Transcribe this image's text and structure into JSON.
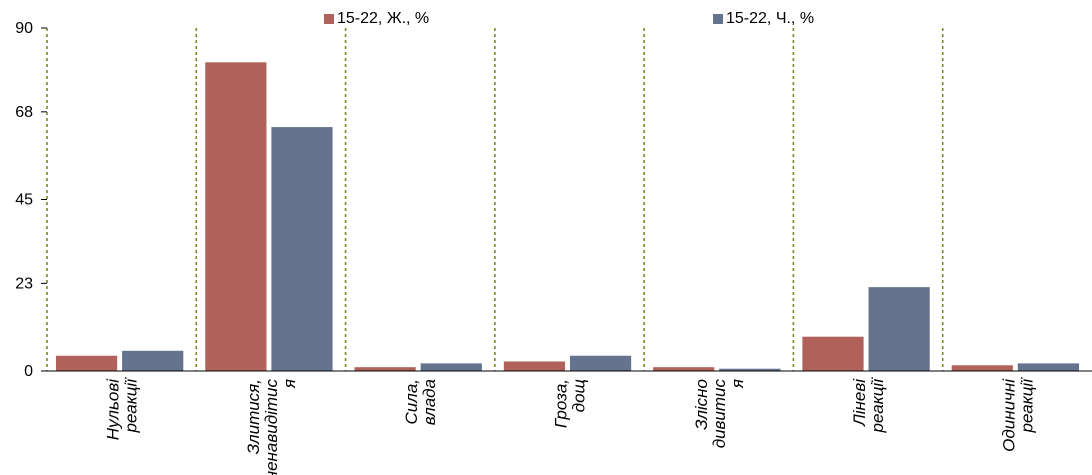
{
  "chart_data": {
    "type": "bar",
    "categories": [
      [
        "Нульові",
        "реакції"
      ],
      [
        "Злитися,",
        "ненавидітис",
        "я"
      ],
      [
        "Сила,",
        "влада"
      ],
      [
        "Гроза,",
        "дощ"
      ],
      [
        "Злісно",
        "дивитис",
        "я"
      ],
      [
        "Ліневі",
        "реакції"
      ],
      [
        "Одиничні",
        "реакції"
      ]
    ],
    "series": [
      {
        "name": "15-22, Ж., %",
        "color": "#b0625a",
        "values": [
          4,
          81,
          1,
          2.5,
          1,
          9,
          1.5
        ]
      },
      {
        "name": "15-22, Ч., %",
        "color": "#65738f",
        "values": [
          5.3,
          64,
          2,
          4,
          0.6,
          22,
          2
        ]
      }
    ],
    "yticks": [
      "0",
      "23",
      "45",
      "68",
      "90"
    ],
    "ylim": [
      0,
      90
    ],
    "grid": "dotted vertical separators between categories",
    "legend_position": "top"
  }
}
